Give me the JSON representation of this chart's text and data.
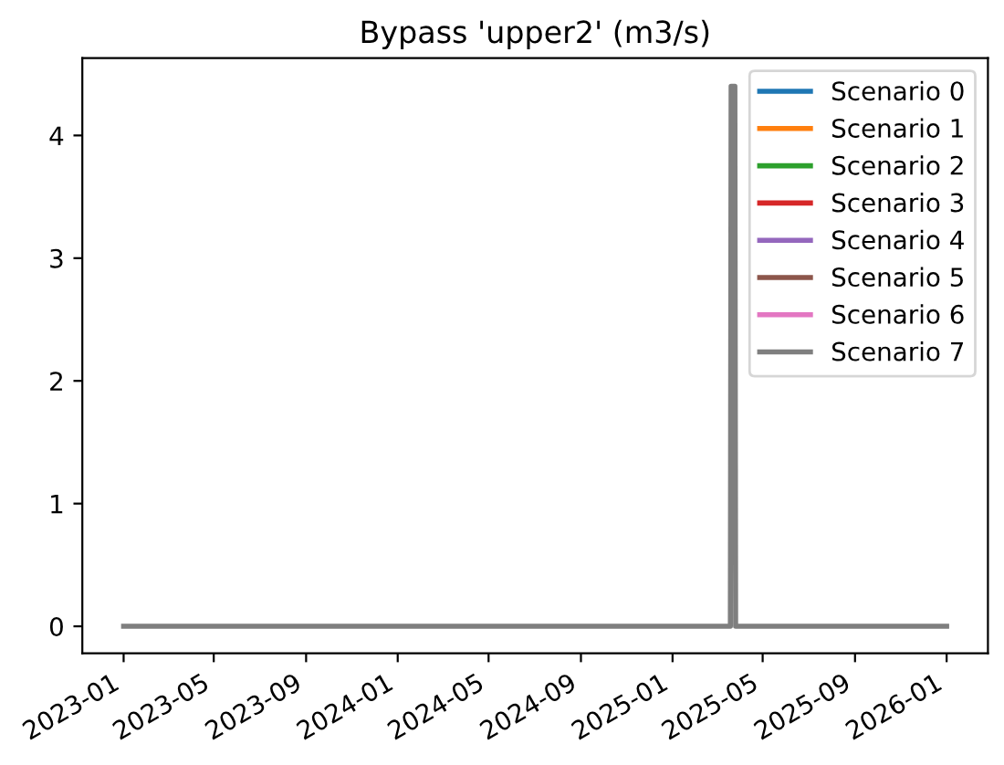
{
  "chart_data": {
    "type": "line",
    "title": "Bypass 'upper2' (m3/s)",
    "series": [
      {
        "name": "Scenario 0",
        "color": "#1f77b4"
      },
      {
        "name": "Scenario 1",
        "color": "#ff7f0e"
      },
      {
        "name": "Scenario 2",
        "color": "#2ca02c"
      },
      {
        "name": "Scenario 3",
        "color": "#d62728"
      },
      {
        "name": "Scenario 4",
        "color": "#9467bd"
      },
      {
        "name": "Scenario 5",
        "color": "#8c564b"
      },
      {
        "name": "Scenario 6",
        "color": "#e377c2"
      },
      {
        "name": "Scenario 7",
        "color": "#7f7f7f",
        "x": [
          "2023-01-01",
          "2025-03-19",
          "2025-03-20",
          "2025-03-25",
          "2025-03-26",
          "2026-01-01"
        ],
        "values": [
          0,
          0,
          4.4,
          4.4,
          0,
          0
        ]
      }
    ],
    "xlim": [
      "2022-11-07",
      "2026-02-25"
    ],
    "xticks": [
      "2023-01",
      "2023-05",
      "2023-09",
      "2024-01",
      "2024-05",
      "2024-09",
      "2025-01",
      "2025-05",
      "2025-09",
      "2026-01"
    ],
    "ylim": [
      -0.22,
      4.63
    ],
    "yticks": [
      0,
      1,
      2,
      3,
      4
    ],
    "legend": "top right",
    "grid": false,
    "marker": "none",
    "line_style": "solid"
  }
}
